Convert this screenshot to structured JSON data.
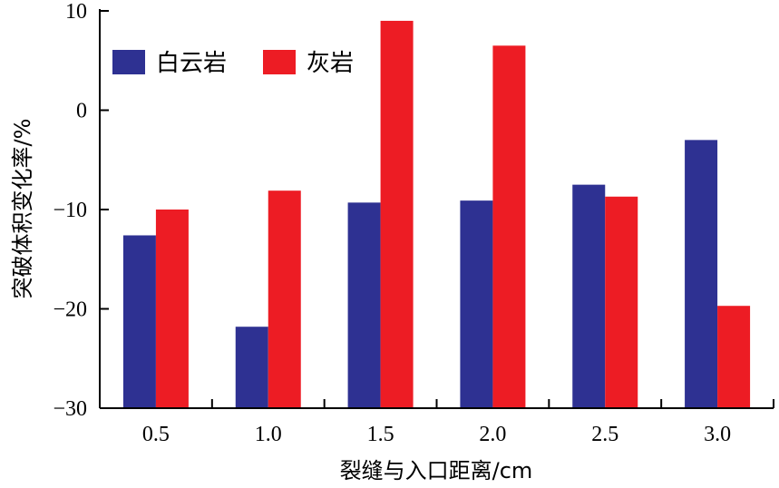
{
  "chart_data": {
    "type": "bar",
    "categories": [
      "0.5",
      "1.0",
      "1.5",
      "2.0",
      "2.5",
      "3.0"
    ],
    "series": [
      {
        "name": "白云岩",
        "color": "#2E3192",
        "values": [
          -12.6,
          -21.8,
          -9.3,
          -9.1,
          -7.5,
          -3.0
        ]
      },
      {
        "name": "灰岩",
        "color": "#ED1C24",
        "values": [
          -10.0,
          -8.1,
          9.0,
          6.5,
          -8.7,
          -19.7
        ]
      }
    ],
    "xlabel": "裂缝与入口距离/cm",
    "ylabel": "突破体积变化率/%",
    "ylim": [
      -30,
      10
    ],
    "yticks": [
      -30,
      -20,
      -10,
      0,
      10
    ],
    "ytick_labels": [
      "−30",
      "−20",
      "−10",
      "0",
      "10"
    ],
    "grid": false,
    "legend_position": "top-left"
  }
}
